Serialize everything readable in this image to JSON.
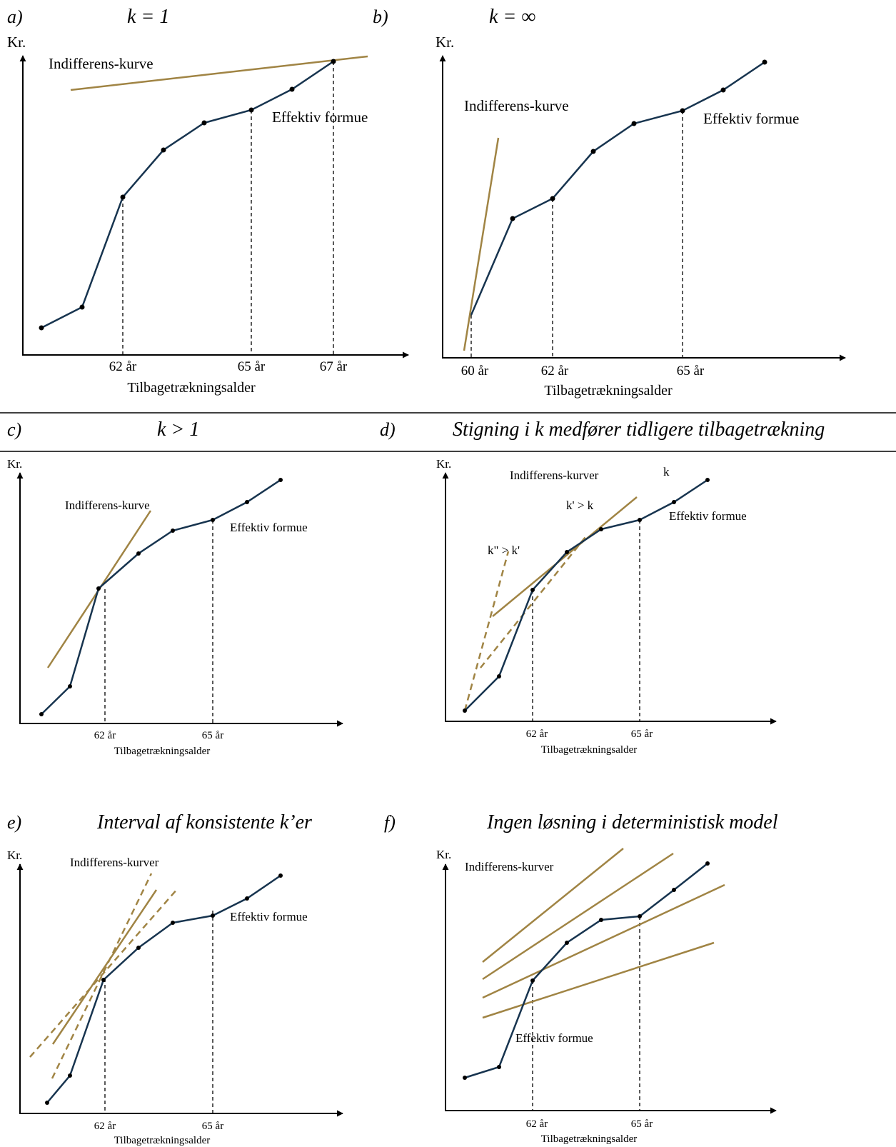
{
  "panels": [
    {
      "id": "a",
      "label": "a)",
      "title": "k = 1",
      "y_axis_label": "Kr.",
      "x_axis_label": "Tilbagetrækningsalder",
      "ticks": [
        "62 år",
        "65 år",
        "67 år"
      ],
      "indifference_label": "Indifferens-kurve",
      "wealth_label": "Effektiv formue"
    },
    {
      "id": "b",
      "label": "b)",
      "title": "k = ∞",
      "y_axis_label": "Kr.",
      "x_axis_label": "Tilbagetrækningsalder",
      "ticks": [
        "60 år",
        "62 år",
        "65 år"
      ],
      "indifference_label": "Indifferens-kurve",
      "wealth_label": "Effektiv formue"
    },
    {
      "id": "c",
      "label": "c)",
      "title": "k > 1",
      "y_axis_label": "Kr.",
      "x_axis_label": "Tilbagetrækningsalder",
      "ticks": [
        "62 år",
        "65 år"
      ],
      "indifference_label": "Indifferens-kurve",
      "wealth_label": "Effektiv formue"
    },
    {
      "id": "d",
      "label": "d)",
      "title": "Stigning i k medfører tidligere tilbagetrækning",
      "y_axis_label": "Kr.",
      "x_axis_label": "Tilbagetrækningsalder",
      "ticks": [
        "62 år",
        "65 år"
      ],
      "indifference_label": "Indifferens-kurver",
      "wealth_label": "Effektiv formue",
      "line_labels": [
        "k",
        "k' > k",
        "k\" > k'"
      ]
    },
    {
      "id": "e",
      "label": "e)",
      "title": "Interval af konsistente k’er",
      "y_axis_label": "Kr.",
      "x_axis_label": "Tilbagetrækningsalder",
      "ticks": [
        "62 år",
        "65 år"
      ],
      "indifference_label": "Indifferens-kurver",
      "wealth_label": "Effektiv formue"
    },
    {
      "id": "f",
      "label": "f)",
      "title": "Ingen løsning i deterministisk model",
      "y_axis_label": "Kr.",
      "x_axis_label": "Tilbagetrækningsalder",
      "ticks": [
        "62 år",
        "65 år"
      ],
      "indifference_label": "Indifferens-kurver",
      "wealth_label": "Effektiv formue"
    }
  ],
  "colors": {
    "wealth_curve": "#17344f",
    "indifference_curve": "#a08444",
    "axis": "#000000"
  }
}
